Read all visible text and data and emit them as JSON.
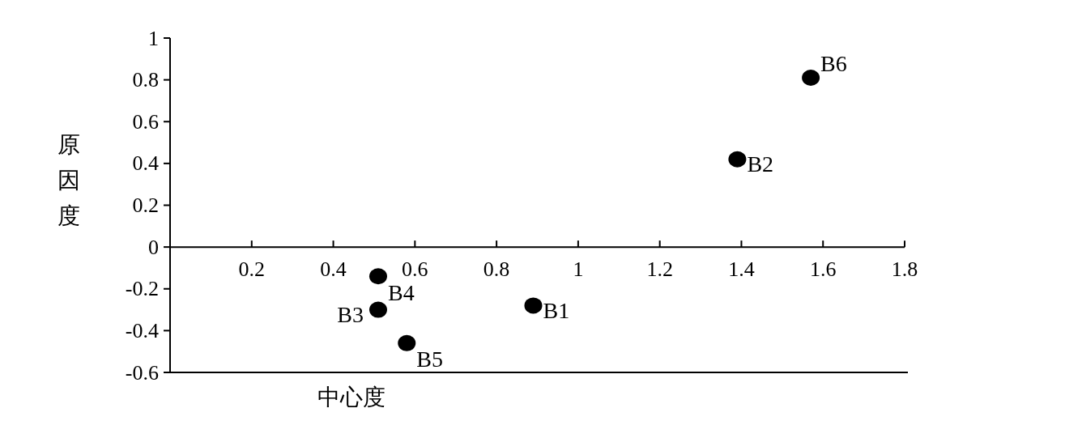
{
  "chart_data": {
    "type": "scatter",
    "xlabel": "中心度",
    "ylabel": "原因度",
    "xlim": [
      0,
      1.8
    ],
    "ylim": [
      -0.6,
      1
    ],
    "xticks": [
      0.2,
      0.4,
      0.6,
      0.8,
      1,
      1.2,
      1.4,
      1.6,
      1.8
    ],
    "yticks": [
      -0.6,
      -0.4,
      -0.2,
      0,
      0.2,
      0.4,
      0.6,
      0.8,
      1
    ],
    "marker": "circle",
    "grid": false,
    "series": [
      {
        "color": "#000000",
        "x": [
          0.89,
          1.39,
          0.51,
          0.51,
          0.58,
          1.57
        ],
        "values": [
          -0.28,
          0.42,
          -0.3,
          -0.14,
          -0.46,
          0.81
        ]
      }
    ],
    "annotations": [
      {
        "text": "B1",
        "x": 0.89,
        "y": -0.28
      },
      {
        "text": "B2",
        "x": 1.39,
        "y": 0.42
      },
      {
        "text": "B3",
        "x": 0.51,
        "y": -0.3
      },
      {
        "text": "B4",
        "x": 0.51,
        "y": -0.14
      },
      {
        "text": "B5",
        "x": 0.58,
        "y": -0.46
      },
      {
        "text": "B6",
        "x": 1.57,
        "y": 0.81
      }
    ]
  }
}
